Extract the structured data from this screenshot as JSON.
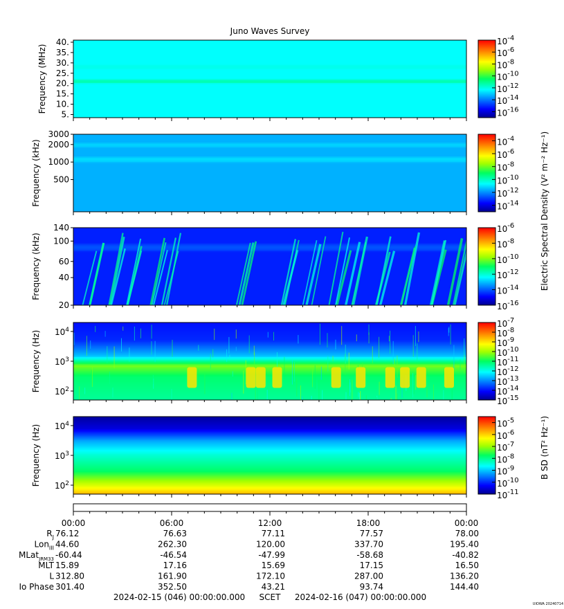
{
  "title": "Juno Waves Survey",
  "cbar_labels": {
    "electric": "Electric Spectral Density (V² m⁻² Hz⁻¹)",
    "magnetic": "B SD (nT² Hz⁻¹)"
  },
  "footer": {
    "start": "2024-02-15 (046) 00:00:00.000",
    "scet": "SCET",
    "end": "2024-02-16 (047) 00:00:00.000",
    "credit": "UIOWA 20240714"
  },
  "ephemeris": {
    "times": [
      "00:00",
      "06:00",
      "12:00",
      "18:00",
      "00:00"
    ],
    "rows": [
      {
        "label": "Rj",
        "values": [
          "76.12",
          "76.63",
          "77.11",
          "77.57",
          "78.00"
        ]
      },
      {
        "label": "LonIII",
        "values": [
          "44.60",
          "262.30",
          "120.00",
          "337.70",
          "195.40"
        ]
      },
      {
        "label": "MLatJRM33",
        "values": [
          "-60.44",
          "-46.54",
          "-47.99",
          "-58.68",
          "-40.82"
        ]
      },
      {
        "label": "MLT",
        "values": [
          "15.89",
          "17.16",
          "15.69",
          "17.15",
          "16.50"
        ]
      },
      {
        "label": "L",
        "values": [
          "312.80",
          "161.90",
          "172.10",
          "287.00",
          "136.20"
        ]
      },
      {
        "label": "Io Phase",
        "values": [
          "301.40",
          "352.50",
          "43.21",
          "93.74",
          "144.40"
        ]
      }
    ]
  },
  "chart_data": [
    {
      "type": "heatmap",
      "ylabel": "Frequency (MHz)",
      "y_scale": "linear",
      "yticks": [
        "40.",
        "35.",
        "30.",
        "25.",
        "20.",
        "15.",
        "10.",
        "5."
      ],
      "ylim": [
        3.5,
        41
      ],
      "cbar_ticks": [
        "-4",
        "-6",
        "-8",
        "-10",
        "-12",
        "-14",
        "-16"
      ],
      "cbar_range_exp": [
        -17,
        -4
      ],
      "background_level": -12.3,
      "bands": [
        {
          "f": 21,
          "w": 1.2,
          "level": -11.4
        },
        {
          "f": 28,
          "w": 1.5,
          "level": -12.1
        }
      ]
    },
    {
      "type": "heatmap",
      "ylabel": "Frequency (kHz)",
      "y_scale": "log",
      "yticks": [
        "3000",
        "2000",
        "1000",
        "500"
      ],
      "ylim": [
        140,
        3000
      ],
      "cbar_ticks": [
        "-4",
        "-6",
        "-8",
        "-10",
        "-12",
        "-14"
      ],
      "cbar_range_exp": [
        -15,
        -3
      ],
      "background_level": -11.6,
      "bands": [
        {
          "f": 1950,
          "w": 0.05,
          "level": -11.2
        },
        {
          "f": 1100,
          "w": 0.06,
          "level": -11.1
        }
      ]
    },
    {
      "type": "heatmap",
      "ylabel": "Frequency (kHz)",
      "y_scale": "log",
      "yticks": [
        "140",
        "100",
        "60",
        "40",
        "20"
      ],
      "ylim": [
        20,
        140
      ],
      "cbar_ticks": [
        "-6",
        "-8",
        "-10",
        "-12",
        "-14",
        "-16"
      ],
      "cbar_range_exp": [
        -16,
        -6
      ],
      "background_level": -14.6,
      "bands": [
        {
          "f": 85,
          "w": 0.05,
          "level": -14.1
        }
      ],
      "bursts_hours": [
        1.2,
        2.4,
        3.4,
        5.1,
        5.8,
        10.4,
        13.0,
        14.6,
        16.2,
        17.2,
        19.0,
        20.6,
        22.0,
        23.4
      ]
    },
    {
      "type": "heatmap",
      "ylabel": "Frequency (Hz)",
      "y_scale": "log",
      "yticks": [
        "10^4",
        "10^3",
        "10^2"
      ],
      "ylim": [
        50,
        20000
      ],
      "cbar_ticks": [
        "-7",
        "-8",
        "-9",
        "-10",
        "-11",
        "-12",
        "-13",
        "-14",
        "-15"
      ],
      "cbar_range_exp": [
        -15,
        -7
      ],
      "profile": [
        {
          "f": 50,
          "level": -11.4
        },
        {
          "f": 300,
          "level": -11.1
        },
        {
          "f": 700,
          "level": -10.3
        },
        {
          "f": 1500,
          "level": -12.6
        },
        {
          "f": 5000,
          "level": -13.8
        },
        {
          "f": 20000,
          "level": -14.0
        }
      ],
      "emission_hours": [
        7.2,
        10.8,
        11.4,
        12.4,
        16.0,
        17.5,
        19.3,
        20.2,
        21.2,
        22.9
      ]
    },
    {
      "type": "heatmap",
      "ylabel": "Frequency (Hz)",
      "y_scale": "log",
      "yticks": [
        "10^4",
        "10^3",
        "10^2"
      ],
      "ylim": [
        50,
        20000
      ],
      "cbar_ticks": [
        "-5",
        "-6",
        "-7",
        "-8",
        "-9",
        "-10",
        "-11"
      ],
      "cbar_range_exp": [
        -11,
        -4.5
      ],
      "profile": [
        {
          "f": 50,
          "level": -5.8
        },
        {
          "f": 100,
          "level": -6.6
        },
        {
          "f": 300,
          "level": -7.8
        },
        {
          "f": 1000,
          "level": -8.4
        },
        {
          "f": 3000,
          "level": -9.2
        },
        {
          "f": 8000,
          "level": -10.5
        },
        {
          "f": 20000,
          "level": -10.9
        }
      ]
    }
  ]
}
